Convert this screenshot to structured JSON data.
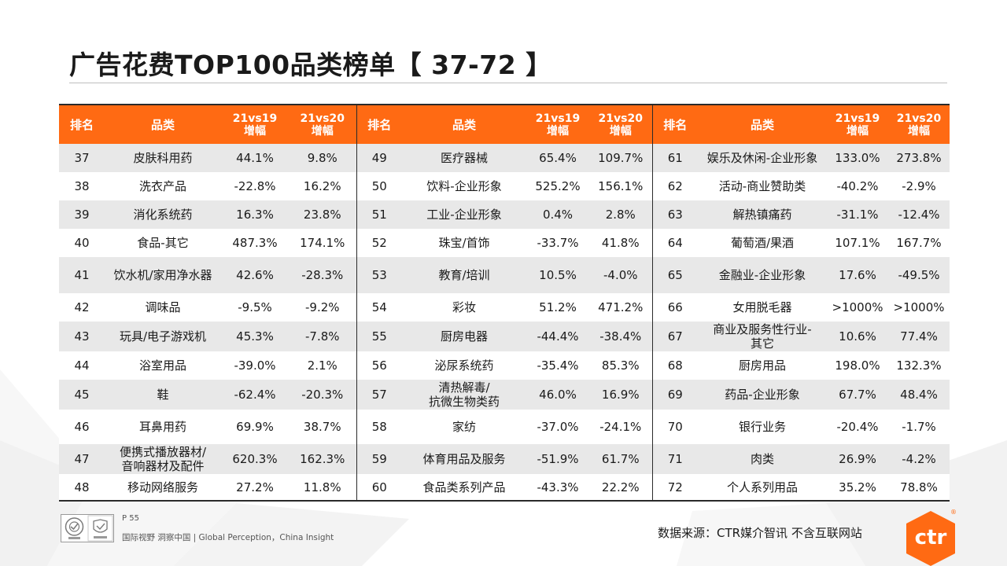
{
  "page": {
    "title": "广告花费TOP100品类榜单【 37-72 】",
    "page_number": "P 55",
    "tagline": "国际视野  洞察中国 |  Global Perception，China Insight",
    "source": "数据来源：CTR媒介智讯  不含互联网站",
    "logo_text": "ctr",
    "registered_mark": "®"
  },
  "colors": {
    "header_orange": "#ff6a13",
    "row_shade": "#e8e8e8",
    "text": "#1a1a1a"
  },
  "icons": [
    "certification-seal-icon",
    "certification-mark-icon",
    "ctr-logo-icon"
  ],
  "table": {
    "headers": {
      "rank": "排名",
      "category": "品类",
      "vs19_line1": "21vs19",
      "vs19_line2": "增幅",
      "vs20_line1": "21vs20",
      "vs20_line2": "增幅"
    },
    "rows": [
      {
        "ranks": [
          "37",
          "49",
          "61"
        ],
        "cats": [
          [
            "皮肤科用药"
          ],
          [
            "医疗器械"
          ],
          [
            "娱乐及休闲-企业形象"
          ]
        ],
        "vs19": [
          "44.1%",
          "65.4%",
          "133.0%"
        ],
        "vs20": [
          "9.8%",
          "109.7%",
          "273.8%"
        ]
      },
      {
        "ranks": [
          "38",
          "50",
          "62"
        ],
        "cats": [
          [
            "洗衣产品"
          ],
          [
            "饮料-企业形象"
          ],
          [
            "活动-商业赞助类"
          ]
        ],
        "vs19": [
          "-22.8%",
          "525.2%",
          "-40.2%"
        ],
        "vs20": [
          "16.2%",
          "156.1%",
          "-2.9%"
        ]
      },
      {
        "ranks": [
          "39",
          "51",
          "63"
        ],
        "cats": [
          [
            "消化系统药"
          ],
          [
            "工业-企业形象"
          ],
          [
            "解热镇痛药"
          ]
        ],
        "vs19": [
          "16.3%",
          "0.4%",
          "-31.1%"
        ],
        "vs20": [
          "23.8%",
          "2.8%",
          "-12.4%"
        ]
      },
      {
        "ranks": [
          "40",
          "52",
          "64"
        ],
        "cats": [
          [
            "食品-其它"
          ],
          [
            "珠宝/首饰"
          ],
          [
            "葡萄酒/果酒"
          ]
        ],
        "vs19": [
          "487.3%",
          "-33.7%",
          "107.1%"
        ],
        "vs20": [
          "174.1%",
          "41.8%",
          "167.7%"
        ]
      },
      {
        "ranks": [
          "41",
          "53",
          "65"
        ],
        "cats": [
          [
            "饮水机/家用净水器"
          ],
          [
            "教育/培训"
          ],
          [
            "金融业-企业形象"
          ]
        ],
        "vs19": [
          "42.6%",
          "10.5%",
          "17.6%"
        ],
        "vs20": [
          "-28.3%",
          "-4.0%",
          "-49.5%"
        ]
      },
      {
        "ranks": [
          "42",
          "54",
          "66"
        ],
        "cats": [
          [
            "调味品"
          ],
          [
            "彩妆"
          ],
          [
            "女用脱毛器"
          ]
        ],
        "vs19": [
          "-9.5%",
          "51.2%",
          ">1000%"
        ],
        "vs20": [
          "-9.2%",
          "471.2%",
          ">1000%"
        ]
      },
      {
        "ranks": [
          "43",
          "55",
          "67"
        ],
        "cats": [
          [
            "玩具/电子游戏机"
          ],
          [
            "厨房电器"
          ],
          [
            "商业及服务性行业-",
            "其它"
          ]
        ],
        "vs19": [
          "45.3%",
          "-44.4%",
          "10.6%"
        ],
        "vs20": [
          "-7.8%",
          "-38.4%",
          "77.4%"
        ]
      },
      {
        "ranks": [
          "44",
          "56",
          "68"
        ],
        "cats": [
          [
            "浴室用品"
          ],
          [
            "泌尿系统药"
          ],
          [
            "厨房用品"
          ]
        ],
        "vs19": [
          "-39.0%",
          "-35.4%",
          "198.0%"
        ],
        "vs20": [
          "2.1%",
          "85.3%",
          "132.3%"
        ]
      },
      {
        "ranks": [
          "45",
          "57",
          "69"
        ],
        "cats": [
          [
            "鞋"
          ],
          [
            "清热解毒/",
            "抗微生物类药"
          ],
          [
            "药品-企业形象"
          ]
        ],
        "vs19": [
          "-62.4%",
          "46.0%",
          "67.7%"
        ],
        "vs20": [
          "-20.3%",
          "16.9%",
          "48.4%"
        ]
      },
      {
        "ranks": [
          "46",
          "58",
          "70"
        ],
        "cats": [
          [
            "耳鼻用药"
          ],
          [
            "家纺"
          ],
          [
            "银行业务"
          ]
        ],
        "vs19": [
          "69.9%",
          "-37.0%",
          "-20.4%"
        ],
        "vs20": [
          "38.7%",
          "-24.1%",
          "-1.7%"
        ]
      },
      {
        "ranks": [
          "47",
          "59",
          "71"
        ],
        "cats": [
          [
            "便携式播放器材/",
            "音响器材及配件"
          ],
          [
            "体育用品及服务"
          ],
          [
            "肉类"
          ]
        ],
        "vs19": [
          "620.3%",
          "-51.9%",
          "26.9%"
        ],
        "vs20": [
          "162.3%",
          "61.7%",
          "-4.2%"
        ]
      },
      {
        "ranks": [
          "48",
          "60",
          "72"
        ],
        "cats": [
          [
            "移动网络服务"
          ],
          [
            "食品类系列产品"
          ],
          [
            "个人系列用品"
          ]
        ],
        "vs19": [
          "27.2%",
          "-43.3%",
          "35.2%"
        ],
        "vs20": [
          "11.8%",
          "22.2%",
          "78.8%"
        ]
      }
    ]
  }
}
